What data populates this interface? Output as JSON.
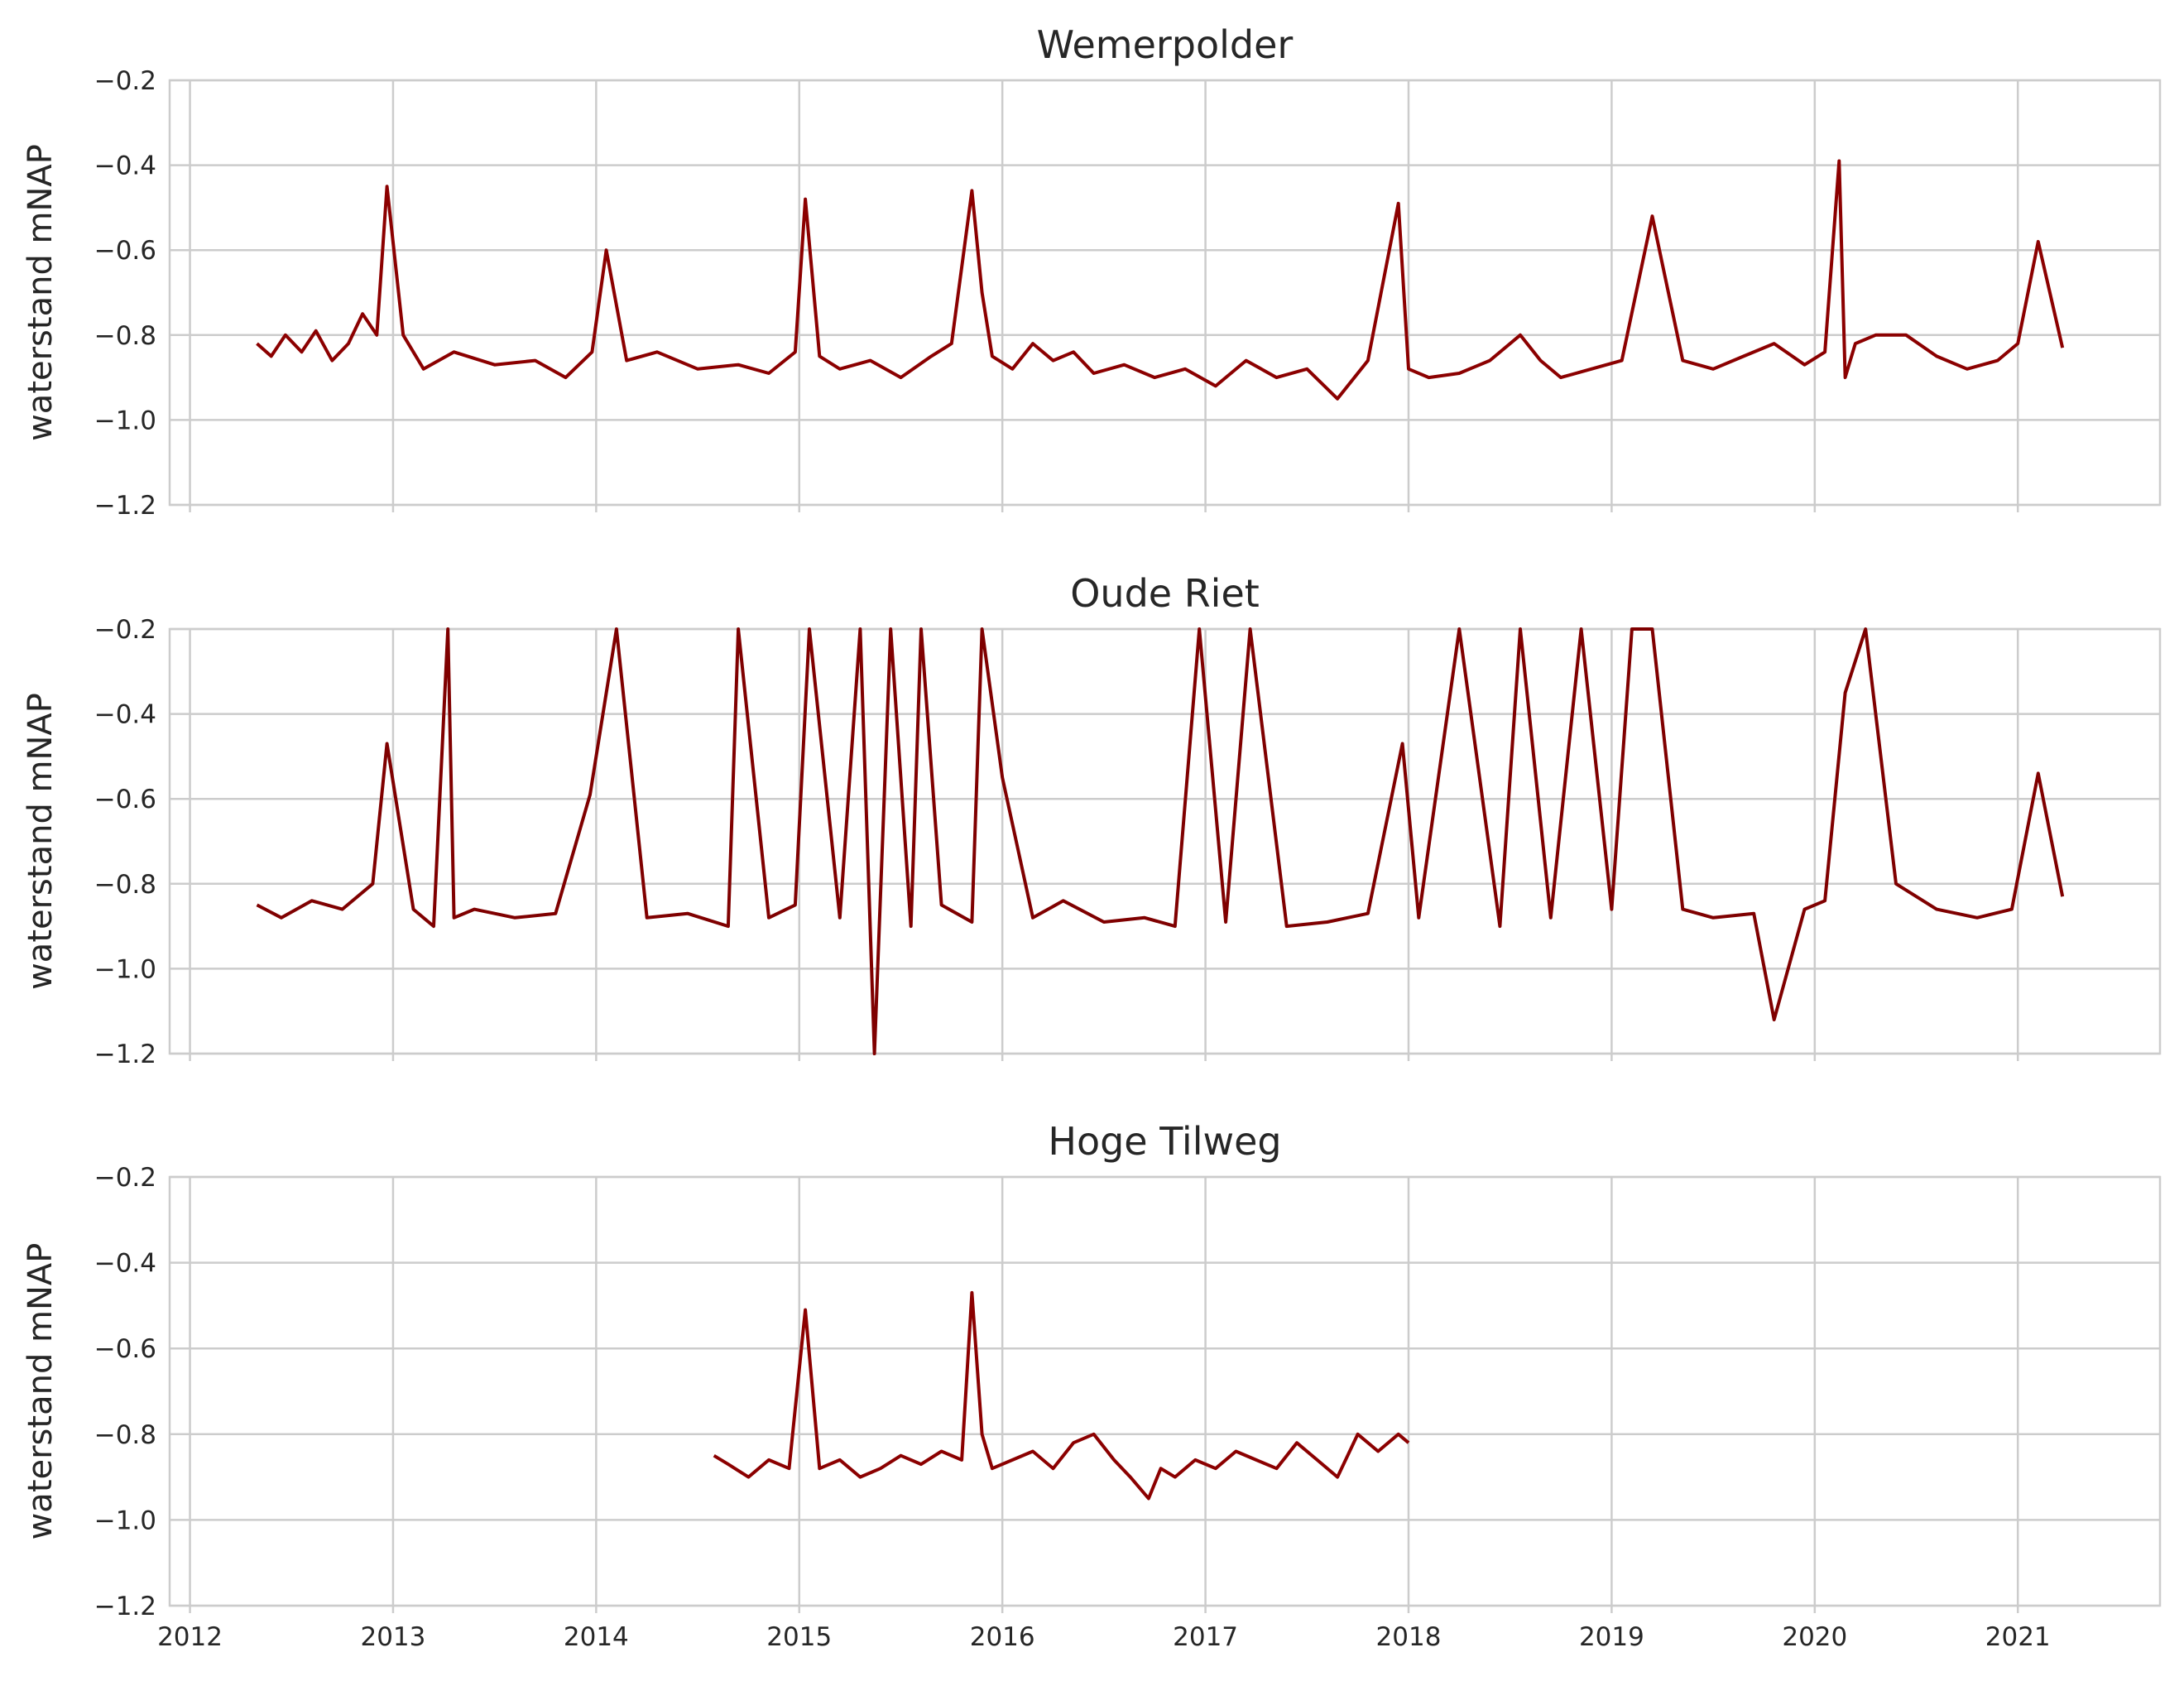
{
  "chart_data": [
    {
      "type": "line",
      "title": "Wemerpolder",
      "ylabel": "waterstand mNAP",
      "ylim": [
        -1.2,
        -0.2
      ],
      "yticks": [
        -0.2,
        -0.4,
        -0.6,
        -0.8,
        -1.0,
        -1.2
      ],
      "ytick_labels": [
        "−0.2",
        "−0.4",
        "−0.6",
        "−0.8",
        "−1.0",
        "−1.2"
      ],
      "xlim": [
        2011.9,
        2021.7
      ],
      "xticks": [
        2012,
        2013,
        2014,
        2015,
        2016,
        2017,
        2018,
        2019,
        2020,
        2021
      ],
      "xtick_labels": [],
      "grid": true,
      "color": "#8b0000",
      "series": [
        {
          "x": [
            2012.33,
            2012.4,
            2012.47,
            2012.55,
            2012.62,
            2012.7,
            2012.78,
            2012.85,
            2012.92,
            2012.97,
            2013.05,
            2013.15,
            2013.3,
            2013.5,
            2013.7,
            2013.85,
            2013.98,
            2014.05,
            2014.15,
            2014.3,
            2014.5,
            2014.7,
            2014.85,
            2014.98,
            2015.03,
            2015.1,
            2015.2,
            2015.35,
            2015.5,
            2015.65,
            2015.75,
            2015.85,
            2015.9,
            2015.95,
            2016.05,
            2016.15,
            2016.25,
            2016.35,
            2016.45,
            2016.6,
            2016.75,
            2016.9,
            2017.05,
            2017.2,
            2017.35,
            2017.5,
            2017.65,
            2017.8,
            2017.95,
            2018.0,
            2018.1,
            2018.25,
            2018.4,
            2018.55,
            2018.65,
            2018.75,
            2018.9,
            2019.05,
            2019.2,
            2019.35,
            2019.5,
            2019.65,
            2019.8,
            2019.95,
            2020.05,
            2020.12,
            2020.15,
            2020.2,
            2020.3,
            2020.45,
            2020.6,
            2020.75,
            2020.9,
            2021.0,
            2021.1,
            2021.22
          ],
          "y": [
            -0.82,
            -0.85,
            -0.8,
            -0.84,
            -0.79,
            -0.86,
            -0.82,
            -0.75,
            -0.8,
            -0.45,
            -0.8,
            -0.88,
            -0.84,
            -0.87,
            -0.86,
            -0.9,
            -0.84,
            -0.6,
            -0.86,
            -0.84,
            -0.88,
            -0.87,
            -0.89,
            -0.84,
            -0.48,
            -0.85,
            -0.88,
            -0.86,
            -0.9,
            -0.85,
            -0.82,
            -0.46,
            -0.7,
            -0.85,
            -0.88,
            -0.82,
            -0.86,
            -0.84,
            -0.89,
            -0.87,
            -0.9,
            -0.88,
            -0.92,
            -0.86,
            -0.9,
            -0.88,
            -0.95,
            -0.86,
            -0.49,
            -0.88,
            -0.9,
            -0.89,
            -0.86,
            -0.8,
            -0.86,
            -0.9,
            -0.88,
            -0.86,
            -0.52,
            -0.86,
            -0.88,
            -0.85,
            -0.82,
            -0.87,
            -0.84,
            -0.39,
            -0.9,
            -0.82,
            -0.8,
            -0.8,
            -0.85,
            -0.88,
            -0.86,
            -0.82,
            -0.58,
            -0.83
          ]
        }
      ]
    },
    {
      "type": "line",
      "title": "Oude Riet",
      "ylabel": "waterstand mNAP",
      "ylim": [
        -1.2,
        -0.2
      ],
      "yticks": [
        -0.2,
        -0.4,
        -0.6,
        -0.8,
        -1.0,
        -1.2
      ],
      "ytick_labels": [
        "−0.2",
        "−0.4",
        "−0.6",
        "−0.8",
        "−1.0",
        "−1.2"
      ],
      "xlim": [
        2011.9,
        2021.7
      ],
      "xticks": [
        2012,
        2013,
        2014,
        2015,
        2016,
        2017,
        2018,
        2019,
        2020,
        2021
      ],
      "xtick_labels": [],
      "grid": true,
      "color": "#7f0000",
      "series": [
        {
          "x": [
            2012.33,
            2012.45,
            2012.6,
            2012.75,
            2012.9,
            2012.97,
            2013.1,
            2013.2,
            2013.27,
            2013.3,
            2013.4,
            2013.6,
            2013.8,
            2013.97,
            2014.1,
            2014.25,
            2014.45,
            2014.65,
            2014.7,
            2014.85,
            2014.98,
            2015.05,
            2015.2,
            2015.3,
            2015.37,
            2015.45,
            2015.55,
            2015.6,
            2015.7,
            2015.85,
            2015.9,
            2016.0,
            2016.15,
            2016.3,
            2016.5,
            2016.7,
            2016.85,
            2016.97,
            2017.1,
            2017.22,
            2017.4,
            2017.6,
            2017.8,
            2017.97,
            2018.05,
            2018.25,
            2018.45,
            2018.55,
            2018.7,
            2018.85,
            2019.0,
            2019.1,
            2019.2,
            2019.35,
            2019.5,
            2019.7,
            2019.8,
            2019.95,
            2020.05,
            2020.15,
            2020.25,
            2020.4,
            2020.6,
            2020.8,
            2020.97,
            2021.1,
            2021.22
          ],
          "y": [
            -0.85,
            -0.88,
            -0.84,
            -0.86,
            -0.8,
            -0.47,
            -0.86,
            -0.9,
            -0.2,
            -0.88,
            -0.86,
            -0.88,
            -0.87,
            -0.59,
            -0.2,
            -0.88,
            -0.87,
            -0.9,
            -0.2,
            -0.88,
            -0.85,
            -0.2,
            -0.88,
            -0.2,
            -1.2,
            -0.2,
            -0.9,
            -0.2,
            -0.85,
            -0.89,
            -0.2,
            -0.55,
            -0.88,
            -0.84,
            -0.89,
            -0.88,
            -0.9,
            -0.2,
            -0.89,
            -0.2,
            -0.9,
            -0.89,
            -0.87,
            -0.47,
            -0.88,
            -0.2,
            -0.9,
            -0.2,
            -0.88,
            -0.2,
            -0.86,
            -0.2,
            -0.2,
            -0.86,
            -0.88,
            -0.87,
            -1.12,
            -0.86,
            -0.84,
            -0.35,
            -0.2,
            -0.8,
            -0.86,
            -0.88,
            -0.86,
            -0.54,
            -0.83
          ]
        }
      ]
    },
    {
      "type": "line",
      "title": "Hoge Tilweg",
      "ylabel": "waterstand mNAP",
      "ylim": [
        -1.2,
        -0.2
      ],
      "yticks": [
        -0.2,
        -0.4,
        -0.6,
        -0.8,
        -1.0,
        -1.2
      ],
      "ytick_labels": [
        "−0.2",
        "−0.4",
        "−0.6",
        "−0.8",
        "−1.0",
        "−1.2"
      ],
      "xlim": [
        2011.9,
        2021.7
      ],
      "xticks": [
        2012,
        2013,
        2014,
        2015,
        2016,
        2017,
        2018,
        2019,
        2020,
        2021
      ],
      "xtick_labels": [
        "2012",
        "2013",
        "2014",
        "2015",
        "2016",
        "2017",
        "2018",
        "2019",
        "2020",
        "2021"
      ],
      "grid": true,
      "color": "#8b0000",
      "series": [
        {
          "x": [
            2014.58,
            2014.65,
            2014.75,
            2014.85,
            2014.95,
            2015.03,
            2015.1,
            2015.2,
            2015.3,
            2015.4,
            2015.5,
            2015.6,
            2015.7,
            2015.8,
            2015.85,
            2015.9,
            2015.95,
            2016.05,
            2016.15,
            2016.25,
            2016.35,
            2016.45,
            2016.55,
            2016.63,
            2016.72,
            2016.78,
            2016.85,
            2016.95,
            2017.05,
            2017.15,
            2017.25,
            2017.35,
            2017.45,
            2017.55,
            2017.65,
            2017.7,
            2017.75,
            2017.85,
            2017.95,
            2018.0
          ],
          "y": [
            -0.85,
            -0.87,
            -0.9,
            -0.86,
            -0.88,
            -0.51,
            -0.88,
            -0.86,
            -0.9,
            -0.88,
            -0.85,
            -0.87,
            -0.84,
            -0.86,
            -0.47,
            -0.8,
            -0.88,
            -0.86,
            -0.84,
            -0.88,
            -0.82,
            -0.8,
            -0.86,
            -0.9,
            -0.95,
            -0.88,
            -0.9,
            -0.86,
            -0.88,
            -0.84,
            -0.86,
            -0.88,
            -0.82,
            -0.86,
            -0.9,
            -0.85,
            -0.8,
            -0.84,
            -0.8,
            -0.82
          ]
        }
      ]
    }
  ]
}
